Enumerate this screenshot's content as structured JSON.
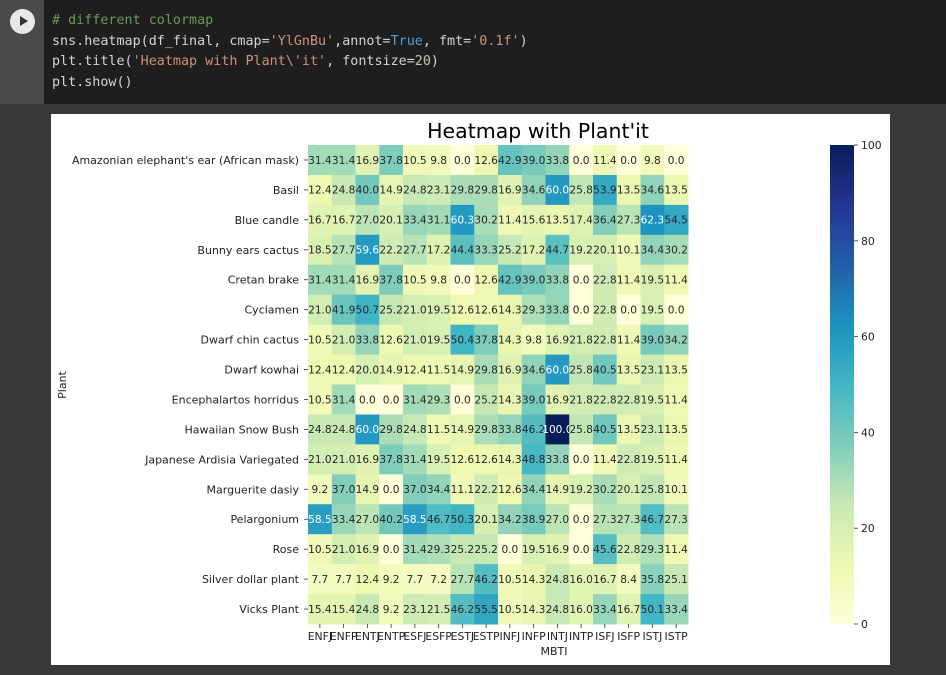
{
  "code_cell": {
    "line1": "# different colormap",
    "line2_a": "sns.heatmap(df_final, cmap=",
    "line2_b": "'YlGnBu'",
    "line2_c": ",annot=",
    "line2_d": "True",
    "line2_e": ", fmt=",
    "line2_f": "'0.1f'",
    "line2_g": ")",
    "line3_a": "plt.title(",
    "line3_b": "'Heatmap with Plant\\'it'",
    "line3_c": ", fontsize=",
    "line3_d": "20",
    "line3_e": ")",
    "line4": "plt.show()"
  },
  "chart_data": {
    "type": "heatmap",
    "title": "Heatmap with Plant'it",
    "xlabel": "MBTI",
    "ylabel": "Plant",
    "colormap": "YlGnBu",
    "vmin": 0,
    "vmax": 100,
    "colorbar_ticks": [
      0,
      20,
      40,
      60,
      80,
      100
    ],
    "x": [
      "ENFJ",
      "ENFP",
      "ENTJ",
      "ENTP",
      "ESFJ",
      "ESFP",
      "ESTJ",
      "ESTP",
      "INFJ",
      "INFP",
      "INTJ",
      "INTP",
      "ISFJ",
      "ISFP",
      "ISTJ",
      "ISTP"
    ],
    "y": [
      "Amazonian elephant's ear (African mask)",
      "Basil",
      "Blue candle",
      "Bunny ears cactus",
      "Cretan brake",
      "Cyclamen",
      "Dwarf chin cactus",
      "Dwarf kowhai",
      "Encephalartos horridus",
      "Hawaiian Snow Bush",
      "Japanese Ardisia Variegated",
      "Marguerite dasiy",
      "Pelargonium",
      "Rose",
      "Silver dollar plant",
      "Vicks Plant"
    ],
    "values": [
      [
        31.4,
        31.4,
        16.9,
        37.8,
        10.5,
        9.8,
        0.0,
        12.6,
        42.9,
        39.0,
        33.8,
        0.0,
        11.4,
        0.0,
        9.8,
        0.0
      ],
      [
        12.4,
        24.8,
        40.0,
        14.9,
        24.8,
        23.1,
        29.8,
        29.8,
        16.9,
        34.6,
        60.0,
        25.8,
        53.9,
        13.5,
        34.6,
        13.5
      ],
      [
        16.7,
        16.7,
        27.0,
        20.1,
        33.4,
        31.1,
        60.3,
        30.2,
        11.4,
        15.6,
        13.5,
        17.4,
        36.4,
        27.3,
        62.3,
        54.5
      ],
      [
        18.5,
        27.7,
        59.6,
        22.2,
        27.7,
        17.2,
        44.4,
        33.3,
        25.2,
        17.2,
        44.7,
        19.2,
        20.1,
        10.1,
        34.4,
        30.2
      ],
      [
        31.4,
        31.4,
        16.9,
        37.8,
        10.5,
        9.8,
        0.0,
        12.6,
        42.9,
        39.0,
        33.8,
        0.0,
        22.8,
        11.4,
        19.5,
        11.4
      ],
      [
        21.0,
        41.9,
        50.7,
        25.2,
        21.0,
        19.5,
        12.6,
        12.6,
        14.3,
        29.3,
        33.8,
        0.0,
        22.8,
        0.0,
        19.5,
        0.0
      ],
      [
        10.5,
        21.0,
        33.8,
        12.6,
        21.0,
        19.5,
        50.4,
        37.8,
        14.3,
        9.8,
        16.9,
        21.8,
        22.8,
        11.4,
        39.0,
        34.2
      ],
      [
        12.4,
        12.4,
        20.0,
        14.9,
        12.4,
        11.5,
        14.9,
        29.8,
        16.9,
        34.6,
        60.0,
        25.8,
        40.5,
        13.5,
        23.1,
        13.5
      ],
      [
        10.5,
        31.4,
        0.0,
        0.0,
        31.4,
        29.3,
        0.0,
        25.2,
        14.3,
        39.0,
        16.9,
        21.8,
        22.8,
        22.8,
        19.5,
        11.4
      ],
      [
        24.8,
        24.8,
        60.0,
        29.8,
        24.8,
        11.5,
        14.9,
        29.8,
        33.8,
        46.2,
        100.0,
        25.8,
        40.5,
        13.5,
        23.1,
        13.5
      ],
      [
        21.0,
        21.0,
        16.9,
        37.8,
        31.4,
        19.5,
        12.6,
        12.6,
        14.3,
        48.8,
        33.8,
        0.0,
        11.4,
        22.8,
        19.5,
        11.4
      ],
      [
        9.2,
        37.0,
        14.9,
        0.0,
        37.0,
        34.4,
        11.1,
        22.2,
        12.6,
        34.4,
        14.9,
        19.2,
        30.2,
        20.1,
        25.8,
        10.1
      ],
      [
        58.5,
        33.4,
        27.0,
        40.2,
        58.5,
        46.7,
        50.3,
        20.1,
        34.2,
        38.9,
        27.0,
        0.0,
        27.3,
        27.3,
        46.7,
        27.3
      ],
      [
        10.5,
        21.0,
        16.9,
        0.0,
        31.4,
        29.3,
        25.2,
        25.2,
        0.0,
        19.5,
        16.9,
        0.0,
        45.6,
        22.8,
        29.3,
        11.4
      ],
      [
        7.7,
        7.7,
        12.4,
        9.2,
        7.7,
        7.2,
        27.7,
        46.2,
        10.5,
        14.3,
        24.8,
        16.0,
        16.7,
        8.4,
        35.8,
        25.1
      ],
      [
        15.4,
        15.4,
        24.8,
        9.2,
        23.1,
        21.5,
        46.2,
        55.5,
        10.5,
        14.3,
        24.8,
        16.0,
        33.4,
        16.7,
        50.1,
        33.4
      ]
    ]
  }
}
